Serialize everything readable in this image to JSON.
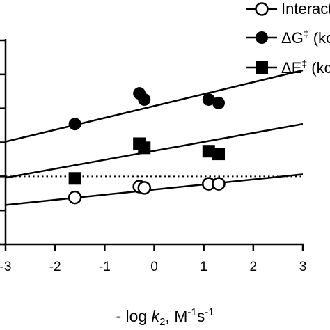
{
  "chart_data": {
    "type": "scatter",
    "xlabel": {
      "prefix": "- log ",
      "k": "k",
      "k_sub": "2",
      "unit_start": ", M",
      "sup1": "-1",
      "unit_mid": "s",
      "sup2": "-1"
    },
    "xlim": [
      -3,
      3
    ],
    "x_ticks": [
      -3,
      -2,
      -1,
      0,
      1,
      2,
      3
    ],
    "x_tick_labels": [
      "-3",
      "-2",
      "-1",
      "0",
      "1",
      "2",
      "3"
    ],
    "ylim": [
      0,
      30
    ],
    "y_ticks": [
      0,
      5,
      10,
      15,
      20,
      25,
      30
    ],
    "reference_line_y": 10,
    "legend": {
      "position": "top-right"
    },
    "series": [
      {
        "legend_label": "Interact",
        "marker": "open-circle",
        "x": [
          -1.6,
          -0.3,
          -0.2,
          1.1,
          1.3
        ],
        "y": [
          6.9,
          8.5,
          8.3,
          8.9,
          8.9
        ],
        "fit_line": {
          "x": [
            -3,
            3
          ],
          "y": [
            5.8,
            10.3
          ]
        }
      },
      {
        "legend_label": "ΔG‡ (kc",
        "legend_base": "ΔG",
        "legend_sup": "‡",
        "legend_rest": " (kc",
        "marker": "filled-circle",
        "x": [
          -1.6,
          -0.3,
          -0.2,
          1.1,
          1.3
        ],
        "y": [
          17.7,
          22.2,
          21.3,
          21.3,
          20.8
        ],
        "fit_line": {
          "x": [
            -3,
            3
          ],
          "y": [
            15.1,
            25.6
          ]
        }
      },
      {
        "legend_label": "ΔE‡ (kc",
        "legend_base": "ΔE",
        "legend_sup": "‡",
        "legend_rest": " (kc",
        "marker": "filled-square",
        "x": [
          -1.6,
          -0.3,
          -0.2,
          1.1,
          1.3
        ],
        "y": [
          9.7,
          14.8,
          14.2,
          13.7,
          13.3
        ],
        "fit_line": {
          "x": [
            -3,
            3
          ],
          "y": [
            9.8,
            17.7
          ]
        }
      }
    ]
  }
}
